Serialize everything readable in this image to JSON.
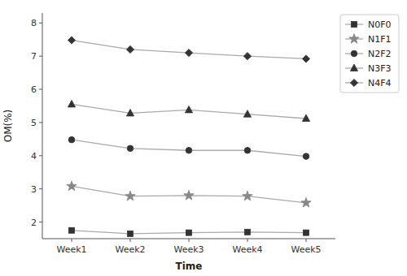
{
  "chart_data": {
    "type": "line",
    "categories": [
      "Week1",
      "Week2",
      "Week3",
      "Week4",
      "Week5"
    ],
    "series": [
      {
        "name": "N0F0",
        "color": "#333333",
        "marker": "square",
        "values": [
          1.75,
          1.65,
          1.68,
          1.7,
          1.68
        ]
      },
      {
        "name": "N1F1",
        "color": "#888888",
        "marker": "star",
        "values": [
          3.08,
          2.78,
          2.8,
          2.78,
          2.58
        ]
      },
      {
        "name": "N2F2",
        "color": "#333333",
        "marker": "circle",
        "values": [
          4.48,
          4.22,
          4.16,
          4.16,
          3.98
        ]
      },
      {
        "name": "N3F3",
        "color": "#333333",
        "marker": "triangle",
        "values": [
          5.55,
          5.28,
          5.38,
          5.25,
          5.12
        ]
      },
      {
        "name": "N4F4",
        "color": "#333333",
        "marker": "diamond",
        "values": [
          7.48,
          7.2,
          7.1,
          7.0,
          6.92
        ]
      }
    ],
    "color": "#aaaaaa",
    "xlabel": "Time",
    "ylabel": "OM(%)",
    "ylim": [
      1.5,
      8.3
    ],
    "yticks": [
      2,
      3,
      4,
      5,
      6,
      7,
      8
    ],
    "grid": false,
    "legend": "right"
  }
}
